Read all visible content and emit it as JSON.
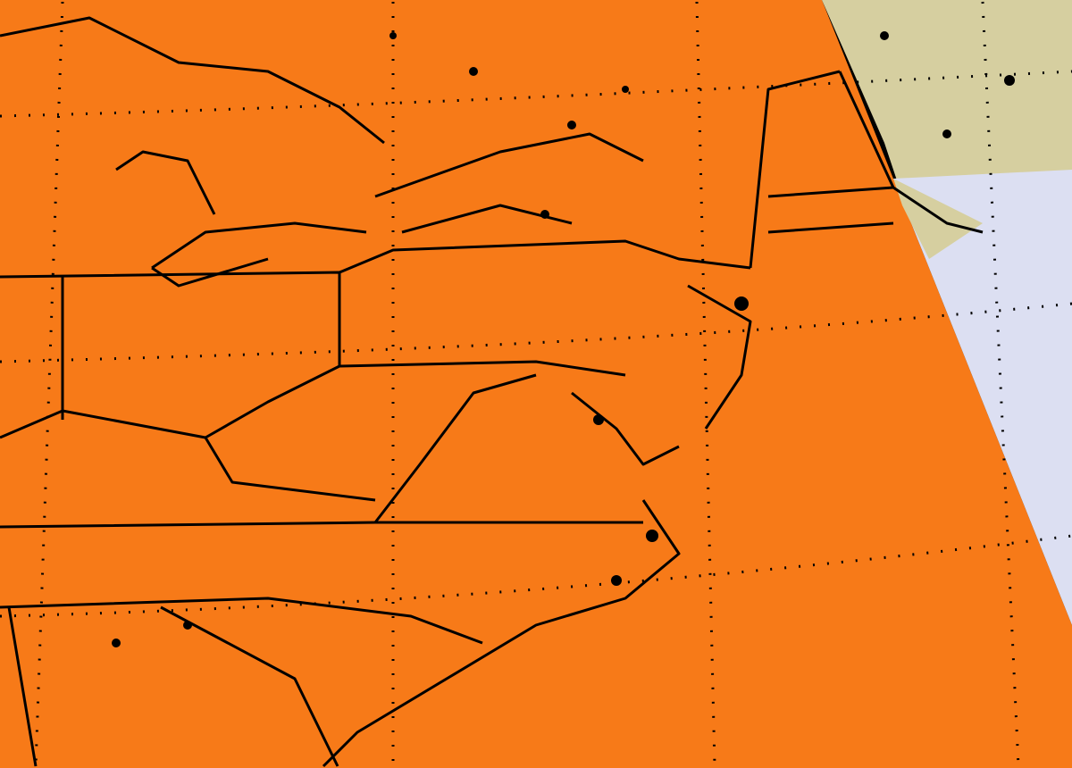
{
  "map": {
    "colors": {
      "warm": "#f04a10",
      "orange": "#fb8c1a",
      "yellow": "#f4f20a",
      "green": "#3cd24a",
      "cyan": "#1aa0e0",
      "blue": "#2d3cf0",
      "purple": "#7a1fd8",
      "land_outside_swath": "#d6cfa0",
      "ocean_outside_swath": "#dcdff2",
      "borders": "#000000"
    }
  }
}
